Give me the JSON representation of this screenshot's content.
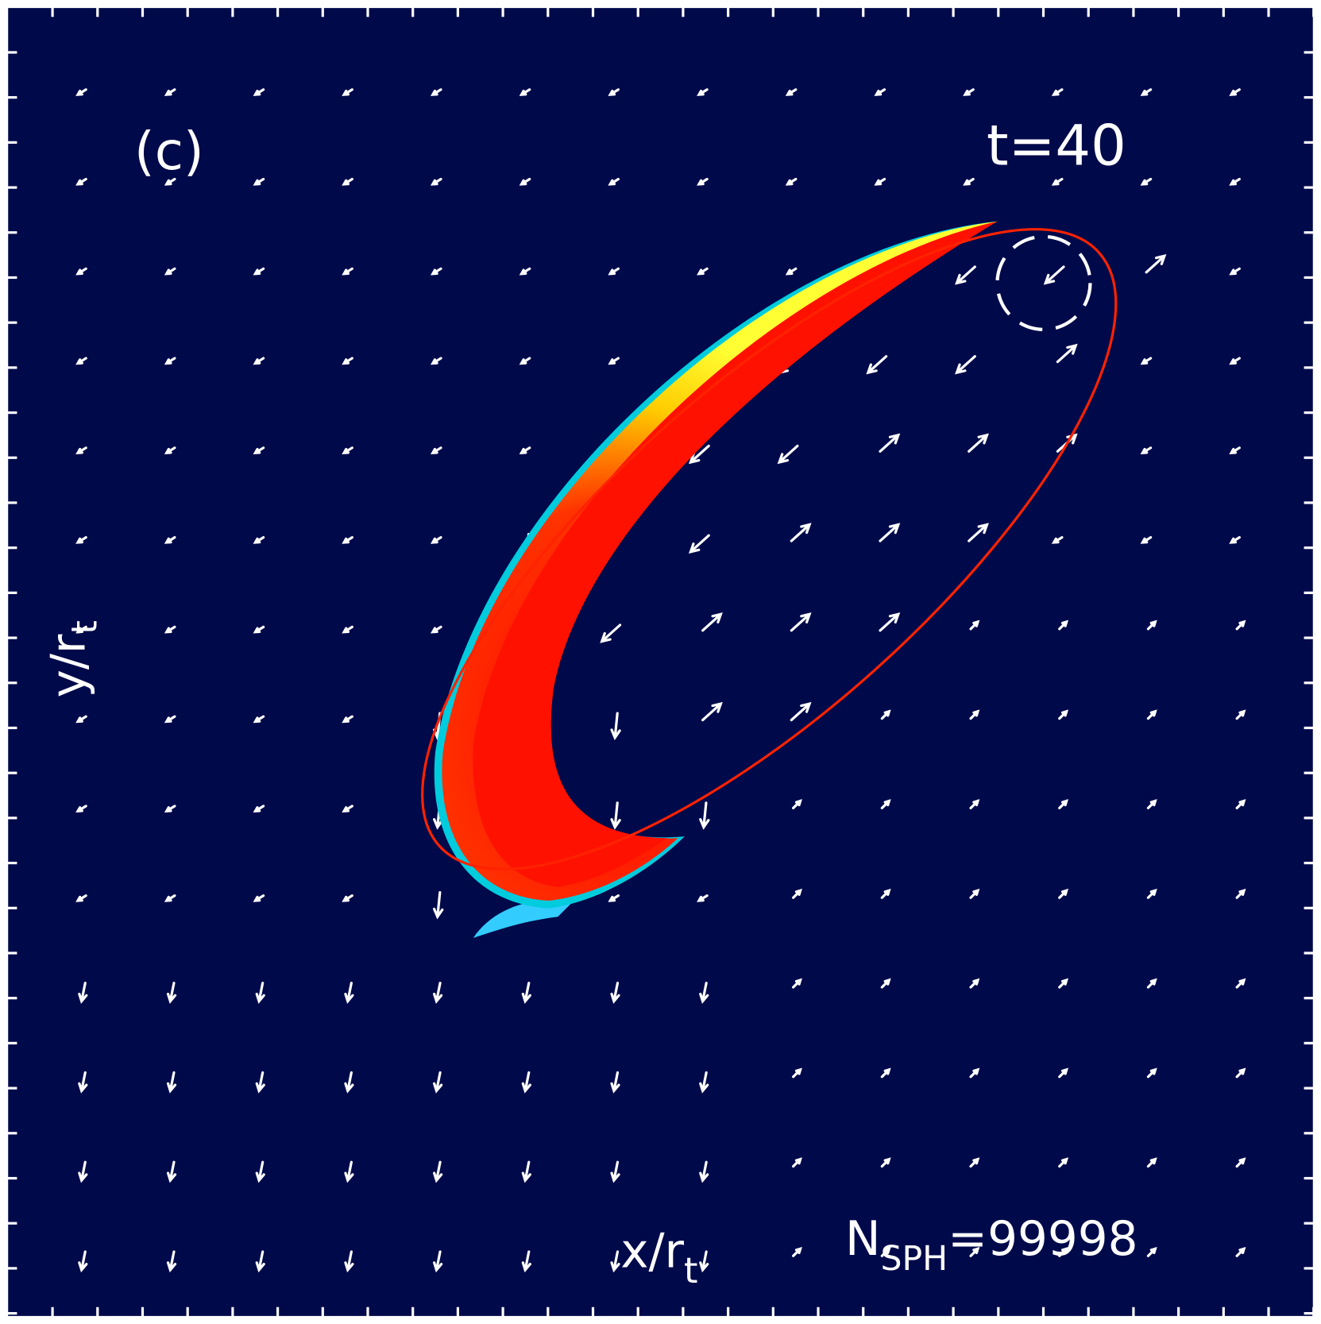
{
  "panel_label": "(c)",
  "time_label": "t=40",
  "y_axis_label": {
    "text": "y/r",
    "subscript": "t"
  },
  "x_axis_label": {
    "text": "x/r",
    "subscript": "t"
  },
  "particle_count": {
    "symbol": "N",
    "subscript": "SPH",
    "text": "=99998"
  }
}
